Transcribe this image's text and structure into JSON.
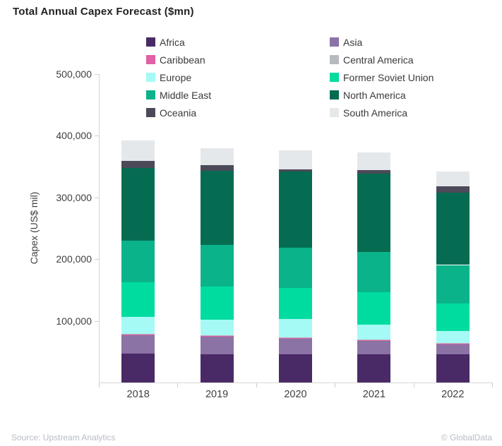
{
  "header": {
    "title": "Total Annual Capex Forecast ($mn)"
  },
  "footer": {
    "source": "Source: Upstream Analytics",
    "brand": "© GlobalData"
  },
  "chart_data": {
    "type": "bar",
    "stacked": true,
    "title": "Total Annual Capex Forecast ($mn)",
    "xlabel": "",
    "ylabel": "Capex (US$ mil)",
    "ylim": [
      0,
      500000
    ],
    "ytick_interval": 100000,
    "yticks": [
      {
        "value": 100000,
        "label": "100,000"
      },
      {
        "value": 200000,
        "label": "200,000"
      },
      {
        "value": 300000,
        "label": "300,000"
      },
      {
        "value": 400000,
        "label": "400,000"
      },
      {
        "value": 500000,
        "label": "500,000"
      }
    ],
    "categories": [
      "2018",
      "2019",
      "2020",
      "2021",
      "2022"
    ],
    "grid": false,
    "legend_position": "top",
    "series": [
      {
        "name": "Africa",
        "color": "#4A2A66",
        "values": [
          46500,
          46000,
          46000,
          45500,
          46000
        ]
      },
      {
        "name": "Asia",
        "color": "#8B73A5",
        "values": [
          30000,
          28500,
          25000,
          21500,
          16000
        ]
      },
      {
        "name": "Caribbean",
        "color": "#E160A6",
        "values": [
          1000,
          1000,
          1000,
          1500,
          1000
        ]
      },
      {
        "name": "Central America",
        "color": "#B7BABF",
        "values": [
          1000,
          1000,
          1000,
          1000,
          1000
        ]
      },
      {
        "name": "Europe",
        "color": "#A5FAF5",
        "values": [
          28000,
          25500,
          29500,
          24000,
          20000
        ]
      },
      {
        "name": "Former Soviet Union",
        "color": "#00DCA0",
        "values": [
          56000,
          54000,
          50500,
          53500,
          44500
        ]
      },
      {
        "name": "Middle East",
        "color": "#0AB38A",
        "values": [
          67000,
          67500,
          65000,
          64500,
          62000
        ]
      },
      {
        "name": "North America",
        "color": "#056C52",
        "values": [
          118500,
          120000,
          124000,
          127000,
          117500
        ]
      },
      {
        "name": "Oceania",
        "color": "#4C4A59",
        "values": [
          11500,
          9000,
          3000,
          6000,
          10500
        ]
      },
      {
        "name": "South America",
        "color": "#E5E8EB",
        "values": [
          32500,
          27500,
          31000,
          28500,
          24000
        ]
      }
    ],
    "totals": [
      392000,
      380000,
      376000,
      373000,
      342500
    ]
  }
}
